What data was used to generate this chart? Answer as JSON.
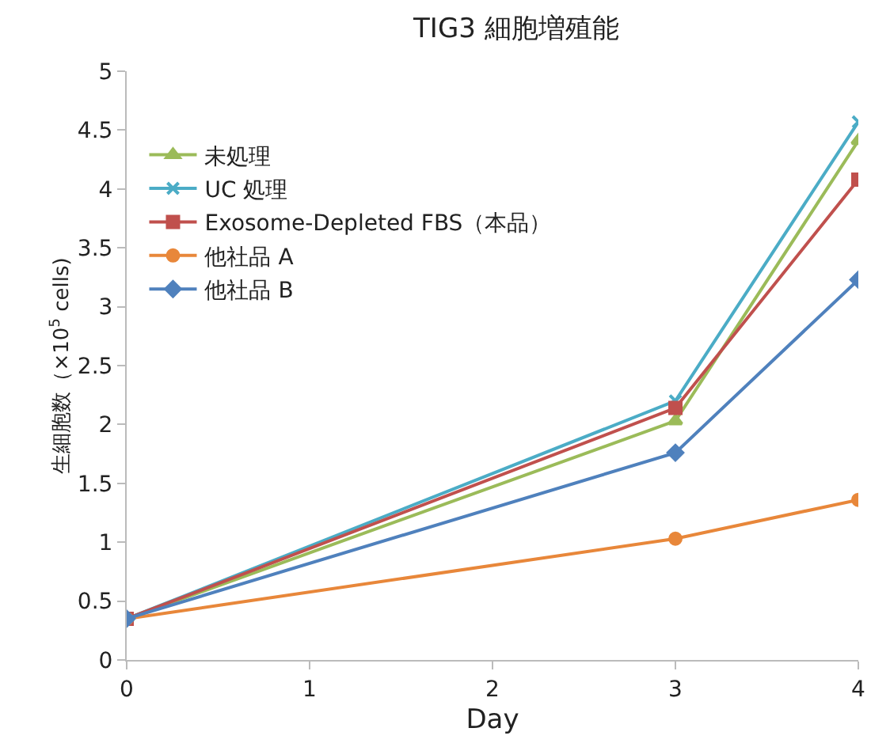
{
  "chart_data": {
    "type": "line",
    "title": "TIG3 細胞増殖能",
    "xlabel": "Day",
    "ylabel": "生細胞数（×10$^{5}$ cells)",
    "x": [
      0,
      3,
      4
    ],
    "series": [
      {
        "name": "未処理",
        "color": "#9bbb59",
        "marker": "triangle",
        "values": [
          0.35,
          2.03,
          4.41
        ]
      },
      {
        "name": "UC 処理",
        "color": "#4bacc6",
        "marker": "cross",
        "values": [
          0.35,
          2.2,
          4.57
        ]
      },
      {
        "name": "Exosome-Depleted FBS（本品）",
        "color": "#c0504d",
        "marker": "square",
        "values": [
          0.35,
          2.14,
          4.08
        ]
      },
      {
        "name": "他社品 A",
        "color": "#e8873a",
        "marker": "circle",
        "values": [
          0.35,
          1.03,
          1.36
        ]
      },
      {
        "name": "他社品 B",
        "color": "#4f81bd",
        "marker": "diamond",
        "values": [
          0.35,
          1.76,
          3.23
        ]
      }
    ],
    "xlim": [
      0,
      4
    ],
    "xticks": [
      0,
      1,
      2,
      3,
      4
    ],
    "ylim": [
      0,
      5
    ],
    "yticks": [
      0,
      0.5,
      1,
      1.5,
      2,
      2.5,
      3,
      3.5,
      4,
      4.5,
      5
    ],
    "grid": false,
    "legend": "top left",
    "line_style": "solid"
  }
}
